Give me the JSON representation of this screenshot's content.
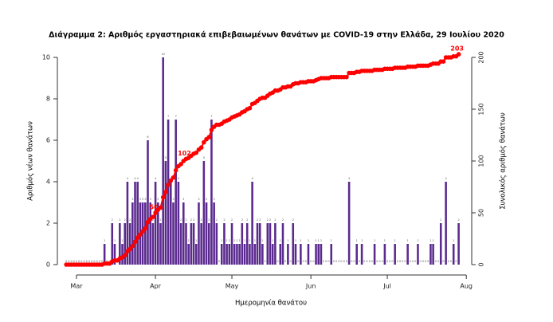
{
  "chart_data": {
    "type": "bar-line",
    "title": "Διάγραμμα 2: Αριθμός εργαστηριακά επιβεβαιωμένων θανάτων με COVID-19 στην Ελλάδα, 29 Ιουλίου 2020",
    "x_label": "Ημερομηνία θανάτου",
    "y_label": "Αριθμός νέων θανάτων",
    "y2_label": "Συνολικός αριθμός θανάτων",
    "xlim": [
      53.5,
      215.5
    ],
    "xticks": [
      {
        "value": 61,
        "label": "Mar"
      },
      {
        "value": 92,
        "label": "Apr"
      },
      {
        "value": 122,
        "label": "May"
      },
      {
        "value": 153,
        "label": "Jun"
      },
      {
        "value": 183,
        "label": "Jul"
      },
      {
        "value": 214,
        "label": "Aug"
      }
    ],
    "ylim": [
      0,
      10
    ],
    "yticks": [
      0,
      2,
      4,
      6,
      8,
      10
    ],
    "y2lim": [
      0,
      200
    ],
    "y2ticks": [
      0,
      50,
      100,
      150,
      200
    ],
    "x": [
      57,
      58,
      59,
      60,
      61,
      62,
      63,
      64,
      65,
      66,
      67,
      68,
      69,
      70,
      71,
      72,
      73,
      74,
      75,
      76,
      77,
      78,
      79,
      80,
      81,
      82,
      83,
      84,
      85,
      86,
      87,
      88,
      89,
      90,
      91,
      92,
      93,
      94,
      95,
      96,
      97,
      98,
      99,
      100,
      101,
      102,
      103,
      104,
      105,
      106,
      107,
      108,
      109,
      110,
      111,
      112,
      113,
      114,
      115,
      116,
      117,
      118,
      119,
      120,
      121,
      122,
      123,
      124,
      125,
      126,
      127,
      128,
      129,
      130,
      131,
      132,
      133,
      134,
      135,
      136,
      137,
      138,
      139,
      140,
      141,
      142,
      143,
      144,
      145,
      146,
      147,
      148,
      149,
      150,
      151,
      152,
      153,
      154,
      155,
      156,
      157,
      158,
      159,
      160,
      161,
      162,
      163,
      164,
      165,
      166,
      167,
      168,
      169,
      170,
      171,
      172,
      173,
      174,
      175,
      176,
      177,
      178,
      179,
      180,
      181,
      182,
      183,
      184,
      185,
      186,
      187,
      188,
      189,
      190,
      191,
      192,
      193,
      194,
      195,
      196,
      197,
      198,
      199,
      200,
      201,
      202,
      203,
      204,
      205,
      206,
      207,
      208,
      209,
      210,
      211
    ],
    "series": [
      {
        "type": "bar",
        "color": "#5b2a8f",
        "values": [
          0,
          0,
          0,
          0,
          0,
          0,
          0,
          0,
          0,
          0,
          0,
          0,
          0,
          0,
          0,
          1,
          0,
          0,
          2,
          1,
          0,
          2,
          1,
          2,
          4,
          2,
          3,
          4,
          4,
          3,
          3,
          3,
          6,
          3,
          2,
          4,
          3,
          2,
          10,
          5,
          7,
          4,
          3,
          7,
          4,
          2,
          3,
          2,
          1,
          2,
          2,
          1,
          3,
          2,
          5,
          3,
          2,
          7,
          3,
          2,
          0,
          1,
          2,
          1,
          1,
          2,
          1,
          1,
          1,
          2,
          1,
          2,
          1,
          4,
          1,
          2,
          2,
          1,
          0,
          2,
          2,
          1,
          2,
          0,
          1,
          2,
          0,
          1,
          0,
          2,
          1,
          0,
          1,
          0,
          0,
          1,
          0,
          0,
          1,
          1,
          1,
          0,
          0,
          0,
          1,
          0,
          0,
          0,
          0,
          0,
          0,
          4,
          0,
          0,
          1,
          0,
          1,
          0,
          0,
          0,
          0,
          1,
          0,
          0,
          0,
          1,
          0,
          0,
          0,
          1,
          0,
          0,
          0,
          0,
          1,
          0,
          0,
          0,
          1,
          0,
          0,
          0,
          0,
          1,
          1,
          0,
          0,
          2,
          0,
          4,
          0,
          0,
          1,
          0,
          2
        ]
      },
      {
        "type": "line",
        "color": "#ff0000",
        "axis": "y2",
        "values": [
          0,
          0,
          0,
          0,
          0,
          0,
          0,
          0,
          0,
          0,
          0,
          0,
          0,
          0,
          0,
          1,
          1,
          1,
          3,
          4,
          4,
          6,
          7,
          9,
          13,
          15,
          18,
          22,
          26,
          29,
          32,
          35,
          41,
          44,
          46,
          50,
          53,
          55,
          65,
          70,
          77,
          81,
          84,
          91,
          95,
          97,
          100,
          102,
          103,
          105,
          107,
          108,
          111,
          113,
          118,
          121,
          123,
          130,
          133,
          135,
          135,
          136,
          138,
          139,
          140,
          142,
          143,
          144,
          145,
          147,
          148,
          150,
          151,
          155,
          156,
          158,
          160,
          161,
          161,
          163,
          165,
          166,
          168,
          168,
          169,
          171,
          171,
          172,
          172,
          174,
          175,
          175,
          176,
          176,
          176,
          177,
          177,
          177,
          178,
          179,
          180,
          180,
          180,
          180,
          181,
          181,
          181,
          181,
          181,
          181,
          181,
          185,
          185,
          185,
          186,
          186,
          187,
          187,
          187,
          187,
          187,
          188,
          188,
          188,
          188,
          189,
          189,
          189,
          189,
          190,
          190,
          190,
          190,
          190,
          191,
          191,
          191,
          191,
          192,
          192,
          192,
          192,
          192,
          193,
          194,
          194,
          194,
          196,
          196,
          200,
          200,
          200,
          201,
          201,
          203
        ]
      }
    ],
    "annotations": [
      {
        "x": 92,
        "text": "50"
      },
      {
        "x": 104,
        "text": "102"
      },
      {
        "x": 211,
        "text": "203"
      }
    ]
  }
}
